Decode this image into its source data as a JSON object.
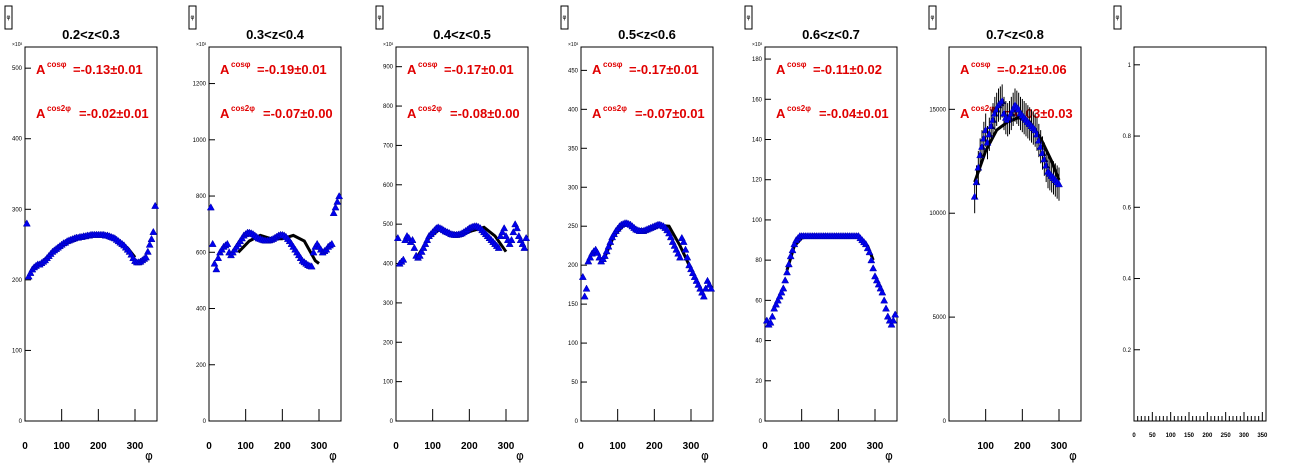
{
  "chart_data": [
    {
      "type": "scatter",
      "title": "0.2<z<0.3",
      "xlabel": "φ",
      "ylabel": "",
      "y_exponent": "×10³",
      "xlim": [
        0,
        360
      ],
      "ylim": [
        0,
        530
      ],
      "xticks": [
        0,
        100,
        200,
        300
      ],
      "yticks": [
        0,
        100,
        200,
        300,
        400,
        500
      ],
      "annotations": [
        "A^cosφ=-0.13±0.01",
        "A^cos2φ=-0.02±0.01"
      ],
      "ann_main": [
        "-0.13±0.01",
        "-0.02±0.01"
      ],
      "x": [
        5,
        10,
        15,
        20,
        25,
        30,
        35,
        40,
        45,
        50,
        55,
        60,
        65,
        70,
        75,
        80,
        85,
        90,
        95,
        100,
        105,
        110,
        115,
        120,
        125,
        130,
        135,
        140,
        145,
        150,
        155,
        160,
        165,
        170,
        175,
        180,
        185,
        190,
        195,
        200,
        205,
        210,
        215,
        220,
        225,
        230,
        235,
        240,
        245,
        250,
        255,
        260,
        265,
        270,
        275,
        280,
        285,
        290,
        295,
        300,
        305,
        310,
        315,
        320,
        325,
        330,
        335,
        340,
        345,
        350,
        355
      ],
      "y": [
        280,
        205,
        210,
        215,
        218,
        220,
        222,
        222,
        224,
        226,
        228,
        231,
        234,
        237,
        240,
        242,
        244,
        246,
        248,
        250,
        252,
        253,
        255,
        256,
        257,
        258,
        259,
        260,
        260,
        261,
        261,
        262,
        262,
        263,
        263,
        264,
        264,
        264,
        264,
        264,
        264,
        264,
        264,
        263,
        263,
        262,
        261,
        260,
        259,
        257,
        255,
        253,
        251,
        249,
        246,
        243,
        240,
        236,
        231,
        227,
        225,
        225,
        226,
        228,
        230,
        232,
        240,
        250,
        258,
        268,
        305
      ],
      "fit_x": [
        70,
        300
      ],
      "fit": [
        [
          70,
          236
        ],
        [
          100,
          248
        ],
        [
          130,
          257
        ],
        [
          160,
          262
        ],
        [
          190,
          264
        ],
        [
          220,
          262
        ],
        [
          250,
          257
        ],
        [
          280,
          245
        ],
        [
          300,
          232
        ]
      ]
    },
    {
      "type": "scatter",
      "title": "0.3<z<0.4",
      "xlabel": "φ",
      "ylabel": "",
      "y_exponent": "×10³",
      "xlim": [
        0,
        360
      ],
      "ylim": [
        0,
        1330
      ],
      "xticks": [
        0,
        100,
        200,
        300
      ],
      "yticks": [
        0,
        200,
        400,
        600,
        800,
        1000,
        1200
      ],
      "annotations": [
        "A^cosφ=-0.19±0.01",
        "A^cos2φ=-0.07±0.00"
      ],
      "ann_main": [
        "-0.19±0.01",
        "-0.07±0.00"
      ],
      "x": [
        5,
        10,
        15,
        20,
        25,
        30,
        35,
        40,
        45,
        50,
        55,
        60,
        65,
        70,
        75,
        80,
        85,
        90,
        95,
        100,
        105,
        110,
        115,
        120,
        125,
        130,
        135,
        140,
        145,
        150,
        155,
        160,
        165,
        170,
        175,
        180,
        185,
        190,
        195,
        200,
        205,
        210,
        215,
        220,
        225,
        230,
        235,
        240,
        245,
        250,
        255,
        260,
        265,
        270,
        275,
        280,
        285,
        290,
        295,
        300,
        305,
        310,
        315,
        320,
        325,
        330,
        335,
        340,
        345,
        350,
        355
      ],
      "y": [
        760,
        630,
        560,
        540,
        580,
        600,
        610,
        620,
        625,
        630,
        600,
        590,
        600,
        610,
        620,
        630,
        640,
        650,
        660,
        665,
        670,
        670,
        668,
        665,
        660,
        655,
        650,
        648,
        645,
        643,
        642,
        642,
        643,
        645,
        648,
        652,
        656,
        660,
        662,
        662,
        660,
        655,
        648,
        640,
        630,
        620,
        610,
        600,
        590,
        580,
        570,
        565,
        560,
        555,
        552,
        550,
        600,
        620,
        630,
        620,
        610,
        600,
        605,
        610,
        620,
        625,
        630,
        740,
        760,
        780,
        800
      ],
      "fit_x": [
        80,
        300
      ],
      "fit": [
        [
          80,
          600
        ],
        [
          110,
          640
        ],
        [
          140,
          660
        ],
        [
          170,
          648
        ],
        [
          200,
          648
        ],
        [
          230,
          660
        ],
        [
          260,
          640
        ],
        [
          290,
          570
        ],
        [
          300,
          560
        ]
      ]
    },
    {
      "type": "scatter",
      "title": "0.4<z<0.5",
      "xlabel": "φ",
      "ylabel": "",
      "y_exponent": "×10³",
      "xlim": [
        0,
        360
      ],
      "ylim": [
        0,
        950
      ],
      "xticks": [
        0,
        100,
        200,
        300
      ],
      "yticks": [
        0,
        100,
        200,
        300,
        400,
        500,
        600,
        700,
        800,
        900
      ],
      "annotations": [
        "A^cosφ=-0.17±0.01",
        "A^cos2φ=-0.08±0.00"
      ],
      "ann_main": [
        "-0.17±0.01",
        "-0.08±0.00"
      ],
      "x": [
        5,
        10,
        15,
        20,
        25,
        30,
        35,
        40,
        45,
        50,
        55,
        60,
        65,
        70,
        75,
        80,
        85,
        90,
        95,
        100,
        105,
        110,
        115,
        120,
        125,
        130,
        135,
        140,
        145,
        150,
        155,
        160,
        165,
        170,
        175,
        180,
        185,
        190,
        195,
        200,
        205,
        210,
        215,
        220,
        225,
        230,
        235,
        240,
        245,
        250,
        255,
        260,
        265,
        270,
        275,
        280,
        285,
        290,
        295,
        300,
        305,
        310,
        315,
        320,
        325,
        330,
        335,
        340,
        345,
        350,
        355
      ],
      "y": [
        465,
        400,
        405,
        410,
        460,
        470,
        465,
        455,
        460,
        440,
        420,
        415,
        420,
        430,
        440,
        450,
        460,
        470,
        475,
        480,
        485,
        490,
        492,
        490,
        488,
        485,
        482,
        480,
        478,
        475,
        474,
        473,
        473,
        474,
        475,
        477,
        480,
        483,
        486,
        490,
        492,
        494,
        495,
        495,
        493,
        490,
        485,
        480,
        475,
        470,
        465,
        460,
        455,
        450,
        445,
        440,
        470,
        480,
        490,
        470,
        460,
        450,
        460,
        480,
        500,
        490,
        470,
        460,
        450,
        440,
        465
      ],
      "fit_x": [
        60,
        300
      ],
      "fit": [
        [
          60,
          420
        ],
        [
          90,
          465
        ],
        [
          120,
          488
        ],
        [
          150,
          478
        ],
        [
          180,
          474
        ],
        [
          210,
          484
        ],
        [
          240,
          492
        ],
        [
          270,
          470
        ],
        [
          300,
          430
        ]
      ]
    },
    {
      "type": "scatter",
      "title": "0.5<z<0.6",
      "xlabel": "φ",
      "ylabel": "",
      "y_exponent": "×10³",
      "xlim": [
        0,
        360
      ],
      "ylim": [
        0,
        480
      ],
      "xticks": [
        0,
        100,
        200,
        300
      ],
      "yticks": [
        0,
        50,
        100,
        150,
        200,
        250,
        300,
        350,
        400,
        450
      ],
      "annotations": [
        "A^cosφ=-0.17±0.01",
        "A^cos2φ=-0.07±0.01"
      ],
      "ann_main": [
        "-0.17±0.01",
        "-0.07±0.01"
      ],
      "x": [
        5,
        10,
        15,
        20,
        25,
        30,
        35,
        40,
        45,
        50,
        55,
        60,
        65,
        70,
        75,
        80,
        85,
        90,
        95,
        100,
        105,
        110,
        115,
        120,
        125,
        130,
        135,
        140,
        145,
        150,
        155,
        160,
        165,
        170,
        175,
        180,
        185,
        190,
        195,
        200,
        205,
        210,
        215,
        220,
        225,
        230,
        235,
        240,
        245,
        250,
        255,
        260,
        265,
        270,
        275,
        280,
        285,
        290,
        295,
        300,
        305,
        310,
        315,
        320,
        325,
        330,
        335,
        340,
        345,
        350,
        355
      ],
      "y": [
        185,
        160,
        170,
        205,
        210,
        215,
        218,
        220,
        216,
        210,
        205,
        208,
        212,
        218,
        224,
        230,
        236,
        240,
        244,
        247,
        250,
        252,
        253,
        254,
        254,
        253,
        252,
        250,
        248,
        246,
        245,
        244,
        244,
        244,
        245,
        246,
        247,
        248,
        249,
        250,
        251,
        252,
        252,
        251,
        250,
        248,
        245,
        241,
        236,
        230,
        225,
        220,
        215,
        210,
        235,
        230,
        220,
        210,
        200,
        195,
        190,
        185,
        180,
        175,
        170,
        165,
        160,
        170,
        180,
        175,
        170
      ],
      "fit_x": [
        60,
        300
      ],
      "fit": [
        [
          60,
          205
        ],
        [
          90,
          238
        ],
        [
          120,
          253
        ],
        [
          150,
          246
        ],
        [
          180,
          245
        ],
        [
          210,
          251
        ],
        [
          240,
          250
        ],
        [
          270,
          225
        ],
        [
          300,
          195
        ]
      ]
    },
    {
      "type": "scatter",
      "title": "0.6<z<0.7",
      "xlabel": "φ",
      "ylabel": "",
      "y_exponent": "×10³",
      "xlim": [
        0,
        360
      ],
      "ylim": [
        0,
        186
      ],
      "xticks": [
        0,
        100,
        200,
        300
      ],
      "yticks": [
        0,
        20,
        40,
        60,
        80,
        100,
        120,
        140,
        160,
        180
      ],
      "annotations": [
        "A^cosφ=-0.11±0.02",
        "A^cos2φ=-0.04±0.01"
      ],
      "ann_main": [
        "-0.11±0.02",
        "-0.04±0.01"
      ],
      "x": [
        5,
        10,
        15,
        20,
        25,
        30,
        35,
        40,
        45,
        50,
        55,
        60,
        65,
        70,
        75,
        80,
        85,
        90,
        95,
        100,
        105,
        110,
        115,
        120,
        125,
        130,
        135,
        140,
        145,
        150,
        155,
        160,
        165,
        170,
        175,
        180,
        185,
        190,
        195,
        200,
        205,
        210,
        215,
        220,
        225,
        230,
        235,
        240,
        245,
        250,
        255,
        260,
        265,
        270,
        275,
        280,
        285,
        290,
        295,
        300,
        305,
        310,
        315,
        320,
        325,
        330,
        335,
        340,
        345,
        350,
        355
      ],
      "y": [
        50,
        48,
        49,
        52,
        56,
        58,
        60,
        62,
        64,
        66,
        70,
        74,
        78,
        82,
        85,
        88,
        90,
        91,
        92,
        92,
        92,
        92,
        92,
        92,
        92,
        92,
        92,
        92,
        92,
        92,
        92,
        92,
        92,
        92,
        92,
        92,
        92,
        92,
        92,
        92,
        92,
        92,
        92,
        92,
        92,
        92,
        92,
        92,
        92,
        92,
        92,
        91,
        90,
        89,
        88,
        86,
        84,
        80,
        76,
        72,
        70,
        68,
        66,
        64,
        60,
        56,
        52,
        50,
        48,
        50,
        53
      ],
      "fit_x": [
        60,
        295
      ],
      "fit": [
        [
          60,
          75
        ],
        [
          80,
          87
        ],
        [
          100,
          91
        ],
        [
          130,
          92
        ],
        [
          180,
          92
        ],
        [
          230,
          92
        ],
        [
          260,
          91
        ],
        [
          280,
          87
        ],
        [
          295,
          80
        ]
      ]
    },
    {
      "type": "scatter",
      "title": "0.7<z<0.8",
      "xlabel": "φ",
      "ylabel": "",
      "y_exponent": "",
      "xlim": [
        0,
        360
      ],
      "ylim": [
        0,
        18000
      ],
      "xticks": [
        100,
        200,
        300
      ],
      "yticks": [
        0,
        5000,
        10000,
        15000
      ],
      "annotations": [
        "A^cosφ=-0.21±0.06",
        "A^cos2φ=-0.03±0.03"
      ],
      "ann_main": [
        "-0.21±0.06",
        "-0.03±0.03"
      ],
      "x": [
        70,
        75,
        80,
        85,
        90,
        95,
        100,
        105,
        110,
        115,
        120,
        125,
        130,
        135,
        140,
        145,
        150,
        155,
        160,
        165,
        170,
        175,
        180,
        185,
        190,
        195,
        200,
        205,
        210,
        215,
        220,
        225,
        230,
        235,
        240,
        245,
        250,
        255,
        260,
        265,
        270,
        275,
        280,
        285,
        290,
        295,
        300
      ],
      "y": [
        10800,
        11500,
        12200,
        12800,
        13200,
        13600,
        14000,
        13400,
        13800,
        14200,
        14500,
        14800,
        15000,
        15200,
        15300,
        15400,
        14800,
        14600,
        14500,
        14600,
        14800,
        15000,
        15200,
        15100,
        15000,
        14800,
        14700,
        14600,
        14500,
        14400,
        14300,
        14200,
        14100,
        14000,
        13800,
        13500,
        13200,
        12900,
        12600,
        12300,
        12000,
        11900,
        11800,
        11700,
        11600,
        11500,
        11400
      ],
      "err": 800,
      "fit_x": [
        70,
        300
      ],
      "fit": [
        [
          70,
          11500
        ],
        [
          100,
          13000
        ],
        [
          130,
          14000
        ],
        [
          160,
          14400
        ],
        [
          190,
          14600
        ],
        [
          220,
          14400
        ],
        [
          250,
          13600
        ],
        [
          280,
          12500
        ],
        [
          300,
          11600
        ]
      ]
    },
    {
      "type": "scatter",
      "title": "",
      "xlabel": "",
      "ylabel": "",
      "y_exponent": "",
      "xlim": [
        0,
        360
      ],
      "ylim": [
        0,
        1.05
      ],
      "xticks": [
        0,
        50,
        100,
        150,
        200,
        250,
        300,
        350
      ],
      "yticks": [
        0.2,
        0.4,
        0.6,
        0.8,
        1
      ],
      "annotations": [],
      "ann_main": [],
      "x": [],
      "y": [],
      "fit": [],
      "fit_x": []
    }
  ]
}
